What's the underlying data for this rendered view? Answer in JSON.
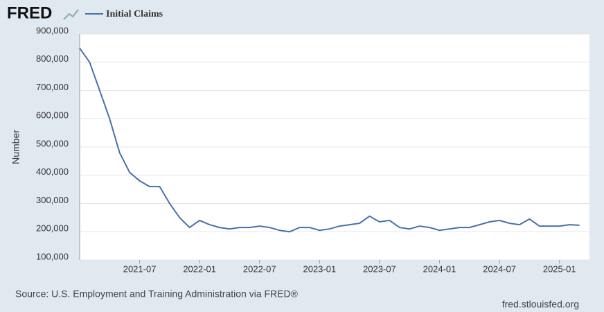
{
  "chart_data": {
    "type": "line",
    "logo": "FRED",
    "ylabel": "Number",
    "source": "Source: U.S. Employment and Training Administration via FRED®",
    "site": "fred.stlouisfed.org",
    "x": [
      "2021-01",
      "2021-02",
      "2021-03",
      "2021-04",
      "2021-05",
      "2021-06",
      "2021-07",
      "2021-08",
      "2021-09",
      "2021-10",
      "2021-11",
      "2021-12",
      "2022-01",
      "2022-02",
      "2022-03",
      "2022-04",
      "2022-05",
      "2022-06",
      "2022-07",
      "2022-08",
      "2022-09",
      "2022-10",
      "2022-11",
      "2022-12",
      "2023-01",
      "2023-02",
      "2023-03",
      "2023-04",
      "2023-05",
      "2023-06",
      "2023-07",
      "2023-08",
      "2023-09",
      "2023-10",
      "2023-11",
      "2023-12",
      "2024-01",
      "2024-02",
      "2024-03",
      "2024-04",
      "2024-05",
      "2024-06",
      "2024-07",
      "2024-08",
      "2024-09",
      "2024-10",
      "2024-11",
      "2024-12",
      "2025-01",
      "2025-02",
      "2025-03"
    ],
    "series": [
      {
        "name": "Initial Claims",
        "color": "#4572a7",
        "values": [
          850000,
          800000,
          700000,
          600000,
          480000,
          410000,
          380000,
          360000,
          360000,
          300000,
          250000,
          215000,
          240000,
          225000,
          215000,
          210000,
          215000,
          215000,
          220000,
          215000,
          205000,
          200000,
          215000,
          215000,
          205000,
          210000,
          220000,
          225000,
          230000,
          255000,
          235000,
          240000,
          215000,
          210000,
          220000,
          215000,
          205000,
          210000,
          215000,
          215000,
          225000,
          235000,
          240000,
          230000,
          225000,
          245000,
          220000,
          220000,
          220000,
          225000,
          223000
        ]
      }
    ],
    "xlim": [
      "2021-01",
      "2025-04"
    ],
    "xticks": [
      "2021-07",
      "2022-01",
      "2022-07",
      "2023-01",
      "2023-07",
      "2024-01",
      "2024-07",
      "2025-01"
    ],
    "ylim": [
      100000,
      900000
    ],
    "yticks": [
      {
        "value": 100000,
        "label": "100,000"
      },
      {
        "value": 200000,
        "label": "200,000"
      },
      {
        "value": 300000,
        "label": "300,000"
      },
      {
        "value": 400000,
        "label": "400,000"
      },
      {
        "value": 500000,
        "label": "500,000"
      },
      {
        "value": 600000,
        "label": "600,000"
      },
      {
        "value": 700000,
        "label": "700,000"
      },
      {
        "value": 800000,
        "label": "800,000"
      },
      {
        "value": 900000,
        "label": "900,000"
      }
    ],
    "grid": true
  }
}
